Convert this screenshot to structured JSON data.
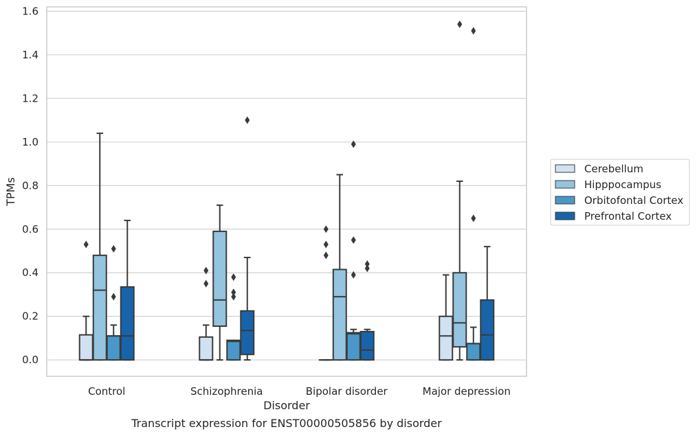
{
  "caption": "Transcript expression for ENST00000505856 by disorder",
  "chart_data": {
    "type": "box",
    "xlabel": "Disorder",
    "ylabel": "TPMs",
    "ylim": [
      -0.075,
      1.62
    ],
    "yticks": [
      "0.0",
      "0.2",
      "0.4",
      "0.6",
      "0.8",
      "1.0",
      "1.2",
      "1.4",
      "1.6"
    ],
    "grid": "horizontal",
    "legend_position": "right",
    "categories": [
      "Control",
      "Schizophrenia",
      "Bipolar disorder",
      "Major depression"
    ],
    "series": [
      {
        "name": "Cerebellum",
        "color": "#d0e1f2",
        "boxes": [
          {
            "whislo": 0.0,
            "q1": 0.0,
            "med": 0.0,
            "q3": 0.115,
            "whishi": 0.2,
            "fliers": [
              0.53
            ]
          },
          {
            "whislo": 0.0,
            "q1": 0.0,
            "med": 0.0,
            "q3": 0.105,
            "whishi": 0.16,
            "fliers": [
              0.35,
              0.41
            ]
          },
          {
            "whislo": 0.0,
            "q1": 0.0,
            "med": 0.0,
            "q3": 0.0,
            "whishi": 0.0,
            "fliers": [
              0.48,
              0.53,
              0.6
            ]
          },
          {
            "whislo": 0.0,
            "q1": 0.0,
            "med": 0.11,
            "q3": 0.2,
            "whishi": 0.39,
            "fliers": []
          }
        ]
      },
      {
        "name": "Hipppocampus",
        "color": "#94c4df",
        "boxes": [
          {
            "whislo": 0.0,
            "q1": 0.0,
            "med": 0.32,
            "q3": 0.48,
            "whishi": 1.04,
            "fliers": []
          },
          {
            "whislo": 0.0,
            "q1": 0.155,
            "med": 0.275,
            "q3": 0.59,
            "whishi": 0.71,
            "fliers": []
          },
          {
            "whislo": 0.0,
            "q1": 0.0,
            "med": 0.29,
            "q3": 0.415,
            "whishi": 0.85,
            "fliers": []
          },
          {
            "whislo": 0.0,
            "q1": 0.06,
            "med": 0.17,
            "q3": 0.4,
            "whishi": 0.82,
            "fliers": [
              1.54
            ]
          }
        ]
      },
      {
        "name": "Orbitofontal Cortex",
        "color": "#4a98c9",
        "boxes": [
          {
            "whislo": 0.0,
            "q1": 0.0,
            "med": 0.11,
            "q3": 0.11,
            "whishi": 0.16,
            "fliers": [
              0.29,
              0.51
            ]
          },
          {
            "whislo": 0.0,
            "q1": 0.0,
            "med": 0.085,
            "q3": 0.09,
            "whishi": 0.09,
            "fliers": [
              0.29,
              0.31,
              0.38
            ]
          },
          {
            "whislo": 0.0,
            "q1": 0.0,
            "med": 0.12,
            "q3": 0.125,
            "whishi": 0.14,
            "fliers": [
              0.39,
              0.55,
              0.99
            ]
          },
          {
            "whislo": 0.0,
            "q1": 0.0,
            "med": 0.075,
            "q3": 0.075,
            "whishi": 0.15,
            "fliers": [
              0.65,
              1.51
            ]
          }
        ]
      },
      {
        "name": "Prefrontal Cortex",
        "color": "#1764ab",
        "boxes": [
          {
            "whislo": 0.0,
            "q1": 0.0,
            "med": 0.11,
            "q3": 0.335,
            "whishi": 0.64,
            "fliers": []
          },
          {
            "whislo": 0.0,
            "q1": 0.025,
            "med": 0.135,
            "q3": 0.225,
            "whishi": 0.47,
            "fliers": [
              1.1
            ]
          },
          {
            "whislo": 0.0,
            "q1": 0.0,
            "med": 0.045,
            "q3": 0.13,
            "whishi": 0.14,
            "fliers": [
              0.42,
              0.44
            ]
          },
          {
            "whislo": 0.0,
            "q1": 0.0,
            "med": 0.115,
            "q3": 0.275,
            "whishi": 0.52,
            "fliers": []
          }
        ]
      }
    ]
  }
}
